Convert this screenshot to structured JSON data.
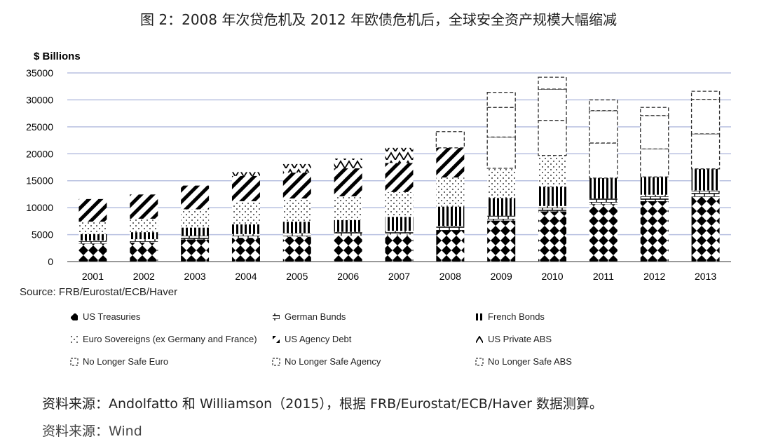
{
  "title": "图 2：2008 年次贷危机及 2012 年欧债危机后，全球安全资产规模大幅缩减",
  "source": "Source: FRB/Eurostat/ECB/Haver",
  "footnote": "资料来源：Andolfatto 和 Williamson（2015），根据 FRB/Eurostat/ECB/Haver 数据测算。",
  "footnote2": "资料来源：Wind",
  "chart_data": {
    "type": "bar",
    "stacked": true,
    "ylabel": "$ Billions",
    "ylim": [
      0,
      35000
    ],
    "yticks": [
      0,
      5000,
      10000,
      15000,
      20000,
      25000,
      30000,
      35000
    ],
    "grid": true,
    "legend_position": "bottom",
    "categories": [
      "2001",
      "2002",
      "2003",
      "2004",
      "2005",
      "2006",
      "2007",
      "2008",
      "2009",
      "2010",
      "2011",
      "2012",
      "2013"
    ],
    "series": [
      {
        "name": "US Treasuries",
        "pattern": "diamonds",
        "values": [
          3300,
          3500,
          4100,
          4400,
          4600,
          4800,
          5000,
          5800,
          7600,
          9300,
          10600,
          11200,
          12000
        ]
      },
      {
        "name": "German Bunds",
        "pattern": "bricks",
        "values": [
          600,
          650,
          700,
          700,
          700,
          700,
          700,
          800,
          900,
          1000,
          1100,
          1200,
          1200
        ]
      },
      {
        "name": "French Bonds",
        "pattern": "vlines",
        "values": [
          1200,
          1300,
          1500,
          1800,
          2100,
          2200,
          2600,
          3600,
          3300,
          3600,
          3800,
          3300,
          4000
        ]
      },
      {
        "name": "Euro Sovereigns (ex Germany and France)",
        "pattern": "dots",
        "values": [
          2300,
          2500,
          3400,
          4300,
          4300,
          4400,
          4600,
          5400,
          5500,
          5800,
          0,
          0,
          0
        ]
      },
      {
        "name": "US Agency Debt",
        "pattern": "diagonal",
        "values": [
          4200,
          4500,
          4400,
          4700,
          4800,
          5200,
          5400,
          5500,
          0,
          0,
          0,
          0,
          0
        ]
      },
      {
        "name": "US Private ABS",
        "pattern": "chevron",
        "values": [
          0,
          0,
          0,
          700,
          1600,
          1800,
          2800,
          0,
          0,
          0,
          0,
          0,
          0
        ]
      },
      {
        "name": "No Longer Safe Euro",
        "pattern": "dashed",
        "values": [
          0,
          0,
          0,
          0,
          0,
          0,
          0,
          0,
          5800,
          6500,
          6500,
          5200,
          6500
        ]
      },
      {
        "name": "No Longer Safe Agency",
        "pattern": "dashed",
        "values": [
          0,
          0,
          0,
          0,
          0,
          0,
          0,
          0,
          5500,
          5800,
          6000,
          6200,
          6400
        ]
      },
      {
        "name": "No Longer Safe ABS",
        "pattern": "dashed",
        "values": [
          0,
          0,
          0,
          0,
          0,
          0,
          0,
          3000,
          2800,
          2200,
          2000,
          1500,
          1500
        ]
      }
    ]
  }
}
